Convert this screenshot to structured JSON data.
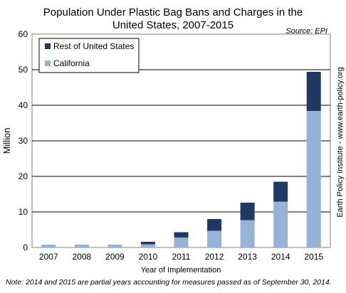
{
  "chart_data": {
    "type": "bar",
    "stacked": true,
    "title_line1": "Population Under Plastic Bag Bans and Charges in the",
    "title_line2": "United States, 2007-2015",
    "source": "Source: EPI",
    "xlabel": "Year of Implementation",
    "ylabel": "Million",
    "side_credit": "Earth Policy Institute - www.earth-policy.org",
    "note": "Note: 2014 and 2015 are partial years accounting for measures passed as of September 30, 2014.",
    "categories": [
      "2007",
      "2008",
      "2009",
      "2010",
      "2011",
      "2012",
      "2013",
      "2014",
      "2015"
    ],
    "ylim": [
      0,
      60
    ],
    "yticks": [
      "0",
      "10",
      "20",
      "30",
      "40",
      "50",
      "60"
    ],
    "legend_position": "top-left",
    "grid": true,
    "series": [
      {
        "name": "California",
        "color": "#95b3d7",
        "values": [
          0.8,
          0.8,
          0.8,
          0.9,
          2.8,
          4.7,
          7.7,
          12.9,
          38.4
        ]
      },
      {
        "name": "Rest of United States",
        "color": "#1f3864",
        "values": [
          0.0,
          0.0,
          0.0,
          0.7,
          1.5,
          3.3,
          4.9,
          5.6,
          11.0
        ]
      }
    ]
  }
}
